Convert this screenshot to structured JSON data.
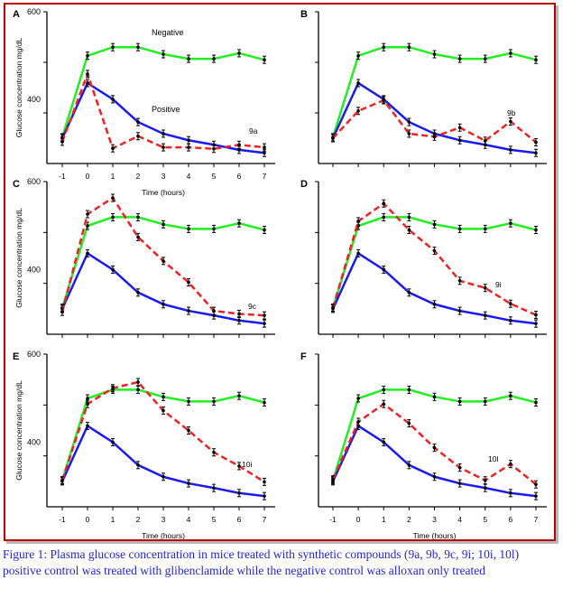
{
  "caption": {
    "line1": "Figure 1: Plasma glucose concentration in mice treated with synthetic compounds (9a, 9b, 9c, 9i; 10i, 10l)",
    "line2": "positive control was treated with glibenclamide while the negative control was alloxan only treated"
  },
  "colors": {
    "frame": "#c00000",
    "negative": "#22ee22",
    "positive": "#1a1aee",
    "compound": "#ee2222",
    "caption": "#2323d8"
  },
  "chart_data": [
    {
      "type": "line",
      "panel": "A",
      "ylabel": "Glucose concentration mg/dL",
      "xlabel": "Time (hours)",
      "x": [
        -1,
        0,
        1,
        2,
        3,
        4,
        5,
        6,
        7
      ],
      "ylim": [
        300,
        600
      ],
      "yticks_labeled": [
        "600",
        "400"
      ],
      "xticks": [
        "-1",
        "0",
        "1",
        "2",
        "3",
        "4",
        "5",
        "6",
        "7"
      ],
      "error_bars": true,
      "series": [
        {
          "name": "Negative",
          "style": "solid",
          "values": [
            352,
            513,
            530,
            530,
            516,
            507,
            507,
            518,
            505
          ]
        },
        {
          "name": "Positive",
          "style": "solid",
          "values": [
            350,
            459,
            427,
            382,
            359,
            346,
            337,
            327,
            321
          ]
        },
        {
          "name": "9a",
          "style": "dashed",
          "values": [
            343,
            477,
            330,
            354,
            332,
            332,
            329,
            337,
            332
          ]
        }
      ]
    },
    {
      "type": "line",
      "panel": "B",
      "x": [
        -1,
        0,
        1,
        2,
        3,
        4,
        5,
        6,
        7
      ],
      "ylim": [
        300,
        600
      ],
      "error_bars": true,
      "series": [
        {
          "values": [
            352,
            513,
            530,
            530,
            516,
            507,
            507,
            518,
            505
          ]
        },
        {
          "values": [
            350,
            459,
            427,
            382,
            359,
            346,
            337,
            327,
            321
          ]
        },
        {
          "name": "9b",
          "style": "dashed",
          "values": [
            350,
            404,
            425,
            359,
            353,
            371,
            345,
            383,
            342
          ]
        }
      ]
    },
    {
      "type": "line",
      "panel": "C",
      "ylabel": "Glucose concentration mg/dL",
      "x": [
        -1,
        0,
        1,
        2,
        3,
        4,
        5,
        6,
        7
      ],
      "ylim": [
        300,
        600
      ],
      "yticks_labeled": [
        "600",
        "400"
      ],
      "error_bars": true,
      "series": [
        {
          "values": [
            352,
            513,
            530,
            530,
            516,
            507,
            507,
            518,
            505
          ]
        },
        {
          "values": [
            350,
            459,
            427,
            382,
            359,
            346,
            337,
            327,
            321
          ]
        },
        {
          "name": "9c",
          "style": "dashed",
          "values": [
            344,
            536,
            568,
            491,
            444,
            402,
            346,
            340,
            337
          ]
        }
      ]
    },
    {
      "type": "line",
      "panel": "D",
      "x": [
        -1,
        0,
        1,
        2,
        3,
        4,
        5,
        6,
        7
      ],
      "ylim": [
        300,
        600
      ],
      "error_bars": true,
      "series": [
        {
          "values": [
            352,
            513,
            530,
            530,
            516,
            507,
            507,
            518,
            505
          ]
        },
        {
          "values": [
            350,
            459,
            427,
            382,
            359,
            346,
            337,
            327,
            321
          ]
        },
        {
          "name": "9i",
          "style": "dashed",
          "values": [
            352,
            522,
            557,
            505,
            464,
            405,
            391,
            360,
            338
          ]
        }
      ]
    },
    {
      "type": "line",
      "panel": "E",
      "ylabel": "Glucose concentration mg/dL",
      "xlabel": "Time (hours)",
      "x": [
        -1,
        0,
        1,
        2,
        3,
        4,
        5,
        6,
        7
      ],
      "ylim": [
        300,
        600
      ],
      "yticks_labeled": [
        "600",
        "400"
      ],
      "xticks": [
        "-1",
        "0",
        "1",
        "2",
        "3",
        "4",
        "5",
        "6",
        "7"
      ],
      "error_bars": true,
      "series": [
        {
          "values": [
            352,
            513,
            530,
            530,
            516,
            507,
            507,
            518,
            505
          ]
        },
        {
          "values": [
            350,
            459,
            427,
            382,
            359,
            346,
            337,
            327,
            321
          ]
        },
        {
          "name": "10i",
          "style": "dashed",
          "values": [
            352,
            502,
            533,
            545,
            489,
            450,
            407,
            380,
            349
          ]
        }
      ]
    },
    {
      "type": "line",
      "panel": "F",
      "xlabel": "Time (hours)",
      "x": [
        -1,
        0,
        1,
        2,
        3,
        4,
        5,
        6,
        7
      ],
      "ylim": [
        300,
        600
      ],
      "xticks": [
        "-1",
        "0",
        "1",
        "2",
        "3",
        "4",
        "5",
        "6",
        "7"
      ],
      "error_bars": true,
      "series": [
        {
          "values": [
            352,
            513,
            530,
            530,
            516,
            507,
            507,
            518,
            505
          ]
        },
        {
          "values": [
            350,
            459,
            427,
            382,
            359,
            346,
            337,
            327,
            321
          ]
        },
        {
          "name": "10l",
          "style": "dashed",
          "values": [
            354,
            467,
            502,
            464,
            416,
            377,
            352,
            384,
            344
          ]
        }
      ]
    }
  ]
}
